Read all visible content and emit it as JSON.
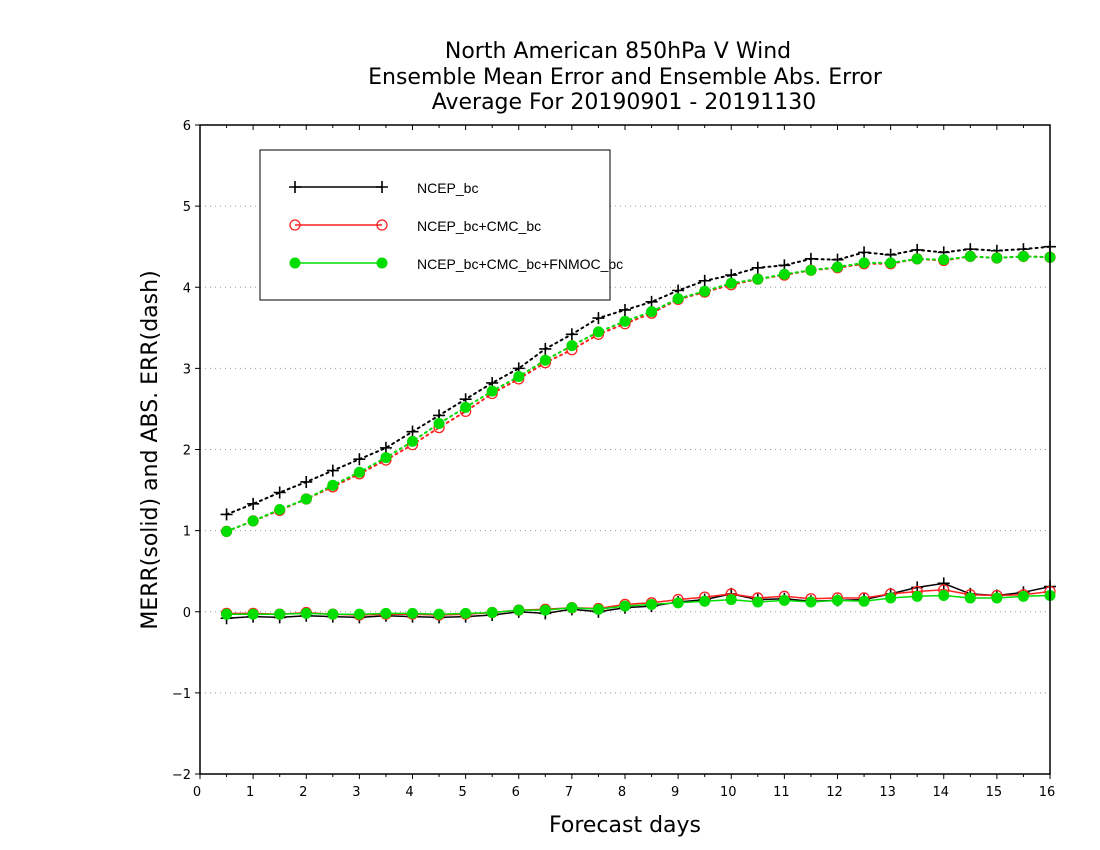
{
  "chart_data": {
    "type": "line",
    "title": [
      "North American 850hPa V Wind",
      "Ensemble Mean Error and Ensemble Abs. Error",
      "Average For 20190901 - 20191130"
    ],
    "xlabel": "Forecast days",
    "ylabel": "MERR(solid) and ABS. ERR(dash)",
    "xlim": [
      0,
      16
    ],
    "ylim": [
      -2,
      6
    ],
    "x_ticks": [
      0,
      1,
      2,
      3,
      4,
      5,
      6,
      7,
      8,
      9,
      10,
      11,
      12,
      13,
      14,
      15,
      16
    ],
    "y_ticks": [
      -2,
      -1,
      0,
      1,
      2,
      3,
      4,
      5,
      6
    ],
    "grid": "horizontal dotted",
    "legend_position": "top-left",
    "x": [
      0.5,
      1,
      1.5,
      2,
      2.5,
      3,
      3.5,
      4,
      4.5,
      5,
      5.5,
      6,
      6.5,
      7,
      7.5,
      8,
      8.5,
      9,
      9.5,
      10,
      10.5,
      11,
      11.5,
      12,
      12.5,
      13,
      13.5,
      14,
      14.5,
      15,
      15.5,
      16
    ],
    "series": [
      {
        "name": "NCEP_bc",
        "color": "#000000",
        "marker": "plus",
        "abs_error": [
          1.2,
          1.33,
          1.47,
          1.6,
          1.74,
          1.88,
          2.02,
          2.22,
          2.42,
          2.62,
          2.82,
          3.0,
          3.24,
          3.42,
          3.62,
          3.72,
          3.82,
          3.96,
          4.08,
          4.15,
          4.24,
          4.27,
          4.35,
          4.34,
          4.43,
          4.4,
          4.46,
          4.43,
          4.47,
          4.45,
          4.47,
          4.5
        ],
        "mean_error": [
          -0.08,
          -0.06,
          -0.07,
          -0.05,
          -0.06,
          -0.07,
          -0.05,
          -0.06,
          -0.07,
          -0.06,
          -0.04,
          0.0,
          -0.02,
          0.03,
          0.0,
          0.05,
          0.07,
          0.12,
          0.15,
          0.22,
          0.15,
          0.16,
          0.13,
          0.14,
          0.15,
          0.22,
          0.3,
          0.35,
          0.22,
          0.2,
          0.24,
          0.31
        ]
      },
      {
        "name": "NCEP_bc+CMC_bc",
        "color": "#ff2020",
        "marker": "open-circle",
        "abs_error": [
          0.99,
          1.12,
          1.25,
          1.39,
          1.54,
          1.7,
          1.87,
          2.06,
          2.27,
          2.47,
          2.69,
          2.87,
          3.07,
          3.23,
          3.42,
          3.55,
          3.68,
          3.85,
          3.94,
          4.03,
          4.1,
          4.15,
          4.21,
          4.24,
          4.29,
          4.29,
          4.35,
          4.33,
          4.38,
          4.36,
          4.38,
          4.37
        ],
        "mean_error": [
          -0.02,
          -0.02,
          -0.03,
          -0.01,
          -0.03,
          -0.04,
          -0.03,
          -0.03,
          -0.04,
          -0.03,
          -0.01,
          0.02,
          0.03,
          0.05,
          0.04,
          0.09,
          0.11,
          0.15,
          0.18,
          0.22,
          0.17,
          0.19,
          0.16,
          0.17,
          0.17,
          0.22,
          0.25,
          0.27,
          0.21,
          0.2,
          0.21,
          0.25
        ]
      },
      {
        "name": "NCEP_bc+CMC_bc+FNMOC_bc",
        "color": "#00dd00",
        "marker": "filled-circle",
        "abs_error": [
          0.99,
          1.12,
          1.26,
          1.39,
          1.56,
          1.72,
          1.9,
          2.1,
          2.32,
          2.52,
          2.72,
          2.9,
          3.1,
          3.28,
          3.45,
          3.58,
          3.7,
          3.86,
          3.95,
          4.05,
          4.1,
          4.16,
          4.21,
          4.25,
          4.3,
          4.3,
          4.35,
          4.34,
          4.38,
          4.36,
          4.38,
          4.37
        ],
        "mean_error": [
          -0.03,
          -0.03,
          -0.03,
          -0.02,
          -0.03,
          -0.03,
          -0.02,
          -0.02,
          -0.03,
          -0.02,
          -0.01,
          0.02,
          0.02,
          0.05,
          0.03,
          0.07,
          0.09,
          0.11,
          0.13,
          0.15,
          0.12,
          0.14,
          0.12,
          0.14,
          0.13,
          0.17,
          0.19,
          0.2,
          0.17,
          0.17,
          0.19,
          0.2
        ]
      }
    ]
  }
}
